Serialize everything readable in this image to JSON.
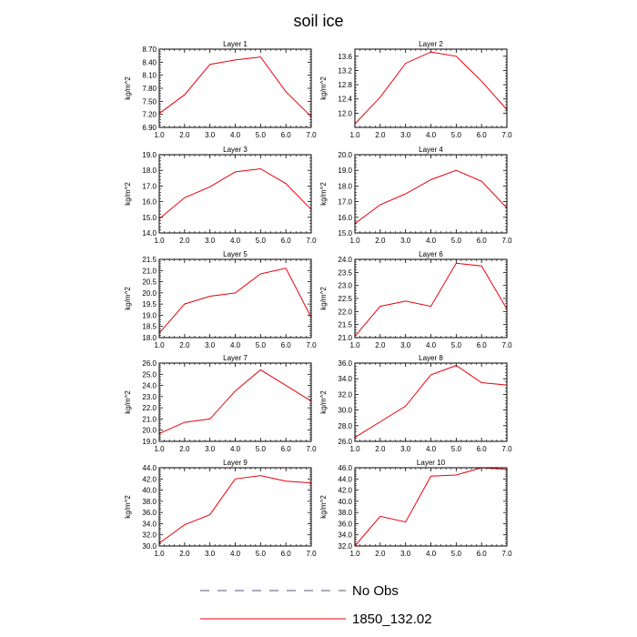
{
  "figure": {
    "title": "soil ice",
    "legend": [
      {
        "label": "No Obs",
        "style": "dashed",
        "color": "#555577"
      },
      {
        "label": "1850_132.02",
        "style": "solid",
        "color": "#e8000b"
      }
    ]
  },
  "chart_data": [
    {
      "type": "line",
      "title": "Layer 1",
      "ylabel": "kg/m^2",
      "x": [
        1,
        2,
        3,
        4,
        5,
        6,
        7
      ],
      "xlim": [
        1,
        7
      ],
      "ylim": [
        6.9,
        8.7
      ],
      "yticks": [
        "6.90",
        "7.20",
        "7.50",
        "7.80",
        "8.10",
        "8.40",
        "8.70"
      ],
      "xticks": [
        "1.0",
        "2.0",
        "3.0",
        "4.0",
        "5.0",
        "6.0",
        "7.0"
      ],
      "series": [
        {
          "values": [
            7.22,
            7.65,
            8.35,
            8.45,
            8.52,
            7.72,
            7.15
          ],
          "color": "#e8000b"
        }
      ]
    },
    {
      "type": "line",
      "title": "Layer 2",
      "ylabel": "kg/m^2",
      "x": [
        1,
        2,
        3,
        4,
        5,
        6,
        7
      ],
      "xlim": [
        1,
        7
      ],
      "ylim": [
        11.6,
        13.8
      ],
      "yticks": [
        "12.0",
        "12.4",
        "12.8",
        "13.2",
        "13.6"
      ],
      "xticks": [
        "1.0",
        "2.0",
        "3.0",
        "4.0",
        "5.0",
        "6.0",
        "7.0"
      ],
      "series": [
        {
          "values": [
            11.7,
            12.45,
            13.4,
            13.72,
            13.6,
            12.9,
            12.1
          ],
          "color": "#e8000b"
        }
      ]
    },
    {
      "type": "line",
      "title": "Layer 3",
      "ylabel": "kg/m^2",
      "x": [
        1,
        2,
        3,
        4,
        5,
        6,
        7
      ],
      "xlim": [
        1,
        7
      ],
      "ylim": [
        14.0,
        19.0
      ],
      "yticks": [
        "14.0",
        "15.0",
        "16.0",
        "17.0",
        "18.0",
        "19.0"
      ],
      "xticks": [
        "1.0",
        "2.0",
        "3.0",
        "4.0",
        "5.0",
        "6.0",
        "7.0"
      ],
      "series": [
        {
          "values": [
            14.9,
            16.25,
            16.95,
            17.9,
            18.1,
            17.15,
            15.5
          ],
          "color": "#e8000b"
        }
      ]
    },
    {
      "type": "line",
      "title": "Layer 4",
      "ylabel": "kg/m^2",
      "x": [
        1,
        2,
        3,
        4,
        5,
        6,
        7
      ],
      "xlim": [
        1,
        7
      ],
      "ylim": [
        15.0,
        20.0
      ],
      "yticks": [
        "15.0",
        "16.0",
        "17.0",
        "18.0",
        "19.0",
        "20.0"
      ],
      "xticks": [
        "1.0",
        "2.0",
        "3.0",
        "4.0",
        "5.0",
        "6.0",
        "7.0"
      ],
      "series": [
        {
          "values": [
            15.6,
            16.8,
            17.5,
            18.4,
            19.0,
            18.3,
            16.6
          ],
          "color": "#e8000b"
        }
      ]
    },
    {
      "type": "line",
      "title": "Layer 5",
      "ylabel": "kg/m^2",
      "x": [
        1,
        2,
        3,
        4,
        5,
        6,
        7
      ],
      "xlim": [
        1,
        7
      ],
      "ylim": [
        18.0,
        21.5
      ],
      "yticks": [
        "18.0",
        "18.5",
        "19.0",
        "19.5",
        "20.0",
        "20.5",
        "21.0",
        "21.5"
      ],
      "xticks": [
        "1.0",
        "2.0",
        "3.0",
        "4.0",
        "5.0",
        "6.0",
        "7.0"
      ],
      "series": [
        {
          "values": [
            18.2,
            19.5,
            19.85,
            20.0,
            20.85,
            21.1,
            18.9
          ],
          "color": "#e8000b"
        }
      ]
    },
    {
      "type": "line",
      "title": "Layer 6",
      "ylabel": "kg/m^2",
      "x": [
        1,
        2,
        3,
        4,
        5,
        6,
        7
      ],
      "xlim": [
        1,
        7
      ],
      "ylim": [
        21.0,
        24.0
      ],
      "yticks": [
        "21.0",
        "21.5",
        "22.0",
        "22.5",
        "23.0",
        "23.5",
        "24.0"
      ],
      "xticks": [
        "1.0",
        "2.0",
        "3.0",
        "4.0",
        "5.0",
        "6.0",
        "7.0"
      ],
      "series": [
        {
          "values": [
            21.05,
            22.2,
            22.4,
            22.2,
            23.85,
            23.75,
            22.1
          ],
          "color": "#e8000b"
        }
      ]
    },
    {
      "type": "line",
      "title": "Layer 7",
      "ylabel": "kg/m^2",
      "x": [
        1,
        2,
        3,
        4,
        5,
        6,
        7
      ],
      "xlim": [
        1,
        7
      ],
      "ylim": [
        19.0,
        26.0
      ],
      "yticks": [
        "19.0",
        "20.0",
        "21.0",
        "22.0",
        "23.0",
        "24.0",
        "25.0",
        "26.0"
      ],
      "xticks": [
        "1.0",
        "2.0",
        "3.0",
        "4.0",
        "5.0",
        "6.0",
        "7.0"
      ],
      "series": [
        {
          "values": [
            19.7,
            20.7,
            21.0,
            23.5,
            25.4,
            24.0,
            22.6
          ],
          "color": "#e8000b"
        }
      ]
    },
    {
      "type": "line",
      "title": "Layer 8",
      "ylabel": "kg/m^2",
      "x": [
        1,
        2,
        3,
        4,
        5,
        6,
        7
      ],
      "xlim": [
        1,
        7
      ],
      "ylim": [
        26.0,
        36.0
      ],
      "yticks": [
        "26.0",
        "28.0",
        "30.0",
        "32.0",
        "34.0",
        "36.0"
      ],
      "xticks": [
        "1.0",
        "2.0",
        "3.0",
        "4.0",
        "5.0",
        "6.0",
        "7.0"
      ],
      "series": [
        {
          "values": [
            26.5,
            28.5,
            30.5,
            34.5,
            35.7,
            33.5,
            33.2
          ],
          "color": "#e8000b"
        }
      ]
    },
    {
      "type": "line",
      "title": "Layer 9",
      "ylabel": "kg/m^2",
      "x": [
        1,
        2,
        3,
        4,
        5,
        6,
        7
      ],
      "xlim": [
        1,
        7
      ],
      "ylim": [
        30.0,
        44.0
      ],
      "yticks": [
        "30.0",
        "32.0",
        "34.0",
        "36.0",
        "38.0",
        "40.0",
        "42.0",
        "44.0"
      ],
      "xticks": [
        "1.0",
        "2.0",
        "3.0",
        "4.0",
        "5.0",
        "6.0",
        "7.0"
      ],
      "series": [
        {
          "values": [
            30.5,
            33.8,
            35.6,
            42.0,
            42.6,
            41.6,
            41.3
          ],
          "color": "#e8000b"
        }
      ]
    },
    {
      "type": "line",
      "title": "Layer 10",
      "ylabel": "kg/m^2",
      "x": [
        1,
        2,
        3,
        4,
        5,
        6,
        7
      ],
      "xlim": [
        1,
        7
      ],
      "ylim": [
        32.0,
        46.0
      ],
      "yticks": [
        "32.0",
        "34.0",
        "36.0",
        "38.0",
        "40.0",
        "42.0",
        "44.0",
        "46.0"
      ],
      "xticks": [
        "1.0",
        "2.0",
        "3.0",
        "4.0",
        "5.0",
        "6.0",
        "7.0"
      ],
      "series": [
        {
          "values": [
            32.0,
            37.3,
            36.3,
            44.5,
            44.7,
            46.0,
            45.7
          ],
          "color": "#e8000b"
        }
      ]
    }
  ]
}
